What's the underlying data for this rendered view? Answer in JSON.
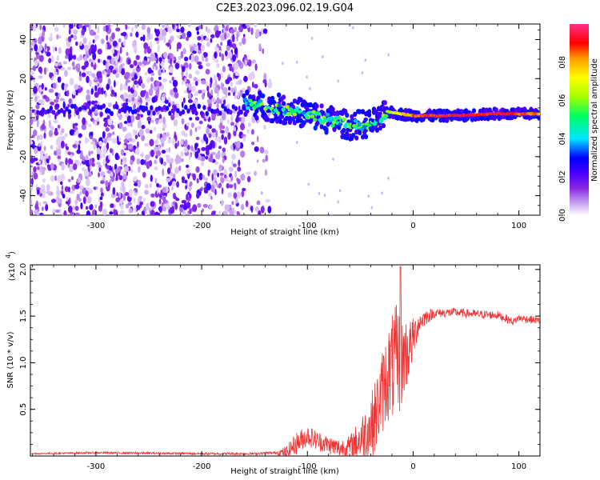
{
  "title": "C2E3.2023.096.02.19.G04",
  "chart_data": [
    {
      "type": "heatmap",
      "title": "C2E3.2023.096.02.19.G04",
      "xlabel": "Height of straight line (km)",
      "ylabel": "Frequency (Hz)",
      "xlim": [
        -362,
        120
      ],
      "ylim": [
        -50,
        48
      ],
      "x_ticks": [
        -300,
        -200,
        -100,
        0,
        100
      ],
      "x_tick_labels": [
        "-300",
        "-200",
        "-100",
        "0",
        "100"
      ],
      "y_ticks": [
        -40,
        -20,
        0,
        20,
        40
      ],
      "y_tick_labels": [
        "-40",
        "-20",
        "0",
        "20",
        "40"
      ],
      "colorbar": {
        "label": "Normalized spectral amplitude",
        "range": [
          0.0,
          1.0
        ],
        "ticks": [
          0.0,
          0.2,
          0.4,
          0.6,
          0.8
        ],
        "tick_labels": [
          "0.0",
          "0.2",
          "0.4",
          "0.6",
          "0.8"
        ],
        "colormap": [
          "#ffffff",
          "#c9a8f2",
          "#8a2be2",
          "#4a00ff",
          "#0000ff",
          "#00e5ff",
          "#00ff60",
          "#a8ff00",
          "#ffff00",
          "#ff9a00",
          "#ff0000",
          "#ff2e8a"
        ]
      },
      "noise_region_x": [
        -362,
        -135
      ],
      "carrier_track": [
        {
          "x": -160,
          "y": 7,
          "amp": 0.5
        },
        {
          "x": -140,
          "y": 6,
          "amp": 0.55
        },
        {
          "x": -120,
          "y": 4,
          "amp": 0.55
        },
        {
          "x": -100,
          "y": 2,
          "amp": 0.5
        },
        {
          "x": -80,
          "y": -1,
          "amp": 0.55
        },
        {
          "x": -60,
          "y": -4,
          "amp": 0.5
        },
        {
          "x": -40,
          "y": -3,
          "amp": 0.5
        },
        {
          "x": -30,
          "y": -1,
          "amp": 0.45
        },
        {
          "x": -25,
          "y": 3,
          "amp": 0.6
        },
        {
          "x": 0,
          "y": 1,
          "amp": 0.9
        },
        {
          "x": 40,
          "y": 1,
          "amp": 0.95
        },
        {
          "x": 80,
          "y": 2,
          "amp": 0.95
        },
        {
          "x": 100,
          "y": 2,
          "amp": 0.9
        },
        {
          "x": 120,
          "y": 2,
          "amp": 0.85
        }
      ],
      "colors": {
        "carrier": "#ff2020",
        "noise": "#8a2be2"
      }
    },
    {
      "type": "line",
      "title": "",
      "xlabel": "Height of straight line (km)",
      "ylabel": "SNR (10 * v/v)",
      "y_scale_label": "(x10",
      "y_scale_exponent": "4",
      "xlim": [
        -362,
        120
      ],
      "ylim": [
        0,
        20500
      ],
      "x_ticks": [
        -300,
        -200,
        -100,
        0,
        100
      ],
      "x_tick_labels": [
        "-300",
        "-200",
        "-100",
        "0",
        "100"
      ],
      "y_ticks": [
        5000,
        10000,
        15000,
        20000
      ],
      "y_tick_labels": [
        "0.5",
        "1.0",
        "1.5",
        "2.0"
      ],
      "series": [
        {
          "name": "SNR",
          "color": "#ee3333",
          "points": [
            [
              -362,
              250
            ],
            [
              -300,
              350
            ],
            [
              -250,
              300
            ],
            [
              -200,
              250
            ],
            [
              -150,
              250
            ],
            [
              -120,
              400
            ],
            [
              -110,
              1400
            ],
            [
              -100,
              2200
            ],
            [
              -90,
              1600
            ],
            [
              -80,
              1200
            ],
            [
              -70,
              800
            ],
            [
              -60,
              1000
            ],
            [
              -50,
              1800
            ],
            [
              -40,
              3200
            ],
            [
              -35,
              4500
            ],
            [
              -30,
              6500
            ],
            [
              -25,
              8500
            ],
            [
              -20,
              9500
            ],
            [
              -15,
              10000
            ],
            [
              -10,
              10500
            ],
            [
              -5,
              11200
            ],
            [
              0,
              12500
            ],
            [
              5,
              14200
            ],
            [
              10,
              14800
            ],
            [
              20,
              15300
            ],
            [
              40,
              15400
            ],
            [
              60,
              15200
            ],
            [
              80,
              15100
            ],
            [
              95,
              14400
            ],
            [
              100,
              14800
            ],
            [
              120,
              14500
            ]
          ],
          "noise_amplitude": [
            [
              -362,
              80
            ],
            [
              -130,
              150
            ],
            [
              -110,
              1200
            ],
            [
              -80,
              1000
            ],
            [
              -60,
              1200
            ],
            [
              -40,
              3500
            ],
            [
              -25,
              5000
            ],
            [
              -15,
              6500
            ],
            [
              -5,
              3500
            ],
            [
              5,
              1200
            ],
            [
              20,
              500
            ],
            [
              120,
              400
            ]
          ],
          "spike": {
            "x": -12,
            "y": 20300
          }
        }
      ]
    }
  ]
}
